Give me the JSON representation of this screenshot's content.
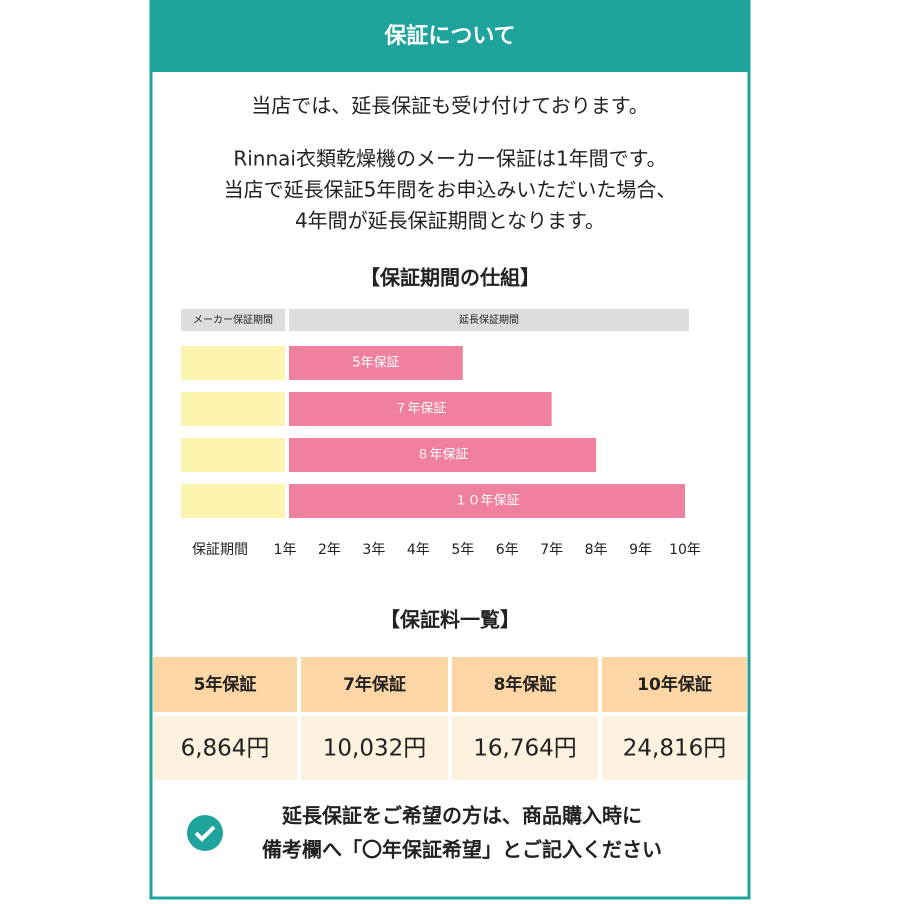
{
  "header": {
    "title": "保証について"
  },
  "intro": [
    "当店では、延長保証も受け付けております。",
    "Rinnai衣類乾燥機のメーカー保証は1年間です。",
    "当店で延長保証5年間をお申込みいただいた場合、",
    "4年間が延長保証期間となります。"
  ],
  "diagram": {
    "title": "【保証期間の仕組】",
    "maker_label": "メーカー保証期間",
    "extended_label": "延長保証期間",
    "bars": [
      {
        "label": "5年保証",
        "years": 5
      },
      {
        "label": "７年保証",
        "years": 7
      },
      {
        "label": "８年保証",
        "years": 8
      },
      {
        "label": "１０年保証",
        "years": 10
      }
    ],
    "axis_title": "保証期間",
    "ticks": [
      {
        "value": 1,
        "label": "1年"
      },
      {
        "value": 2,
        "label": "2年"
      },
      {
        "value": 3,
        "label": "3年"
      },
      {
        "value": 4,
        "label": "4年"
      },
      {
        "value": 5,
        "label": "5年"
      },
      {
        "value": 6,
        "label": "6年"
      },
      {
        "value": 7,
        "label": "7年"
      },
      {
        "value": 8,
        "label": "8年"
      },
      {
        "value": 9,
        "label": "9年"
      },
      {
        "value": 10,
        "label": "10年"
      }
    ]
  },
  "table": {
    "title": "【保証料一覧】",
    "header": [
      "5年保証",
      "7年保証",
      "8年保証",
      "10年保証"
    ],
    "prices": [
      "6,864円",
      "10,032円",
      "16,764円",
      "24,816円"
    ]
  },
  "note": [
    "延長保証をご希望の方は、商品購入時に",
    "備考欄へ「〇年保証希望」とご記入ください"
  ]
}
